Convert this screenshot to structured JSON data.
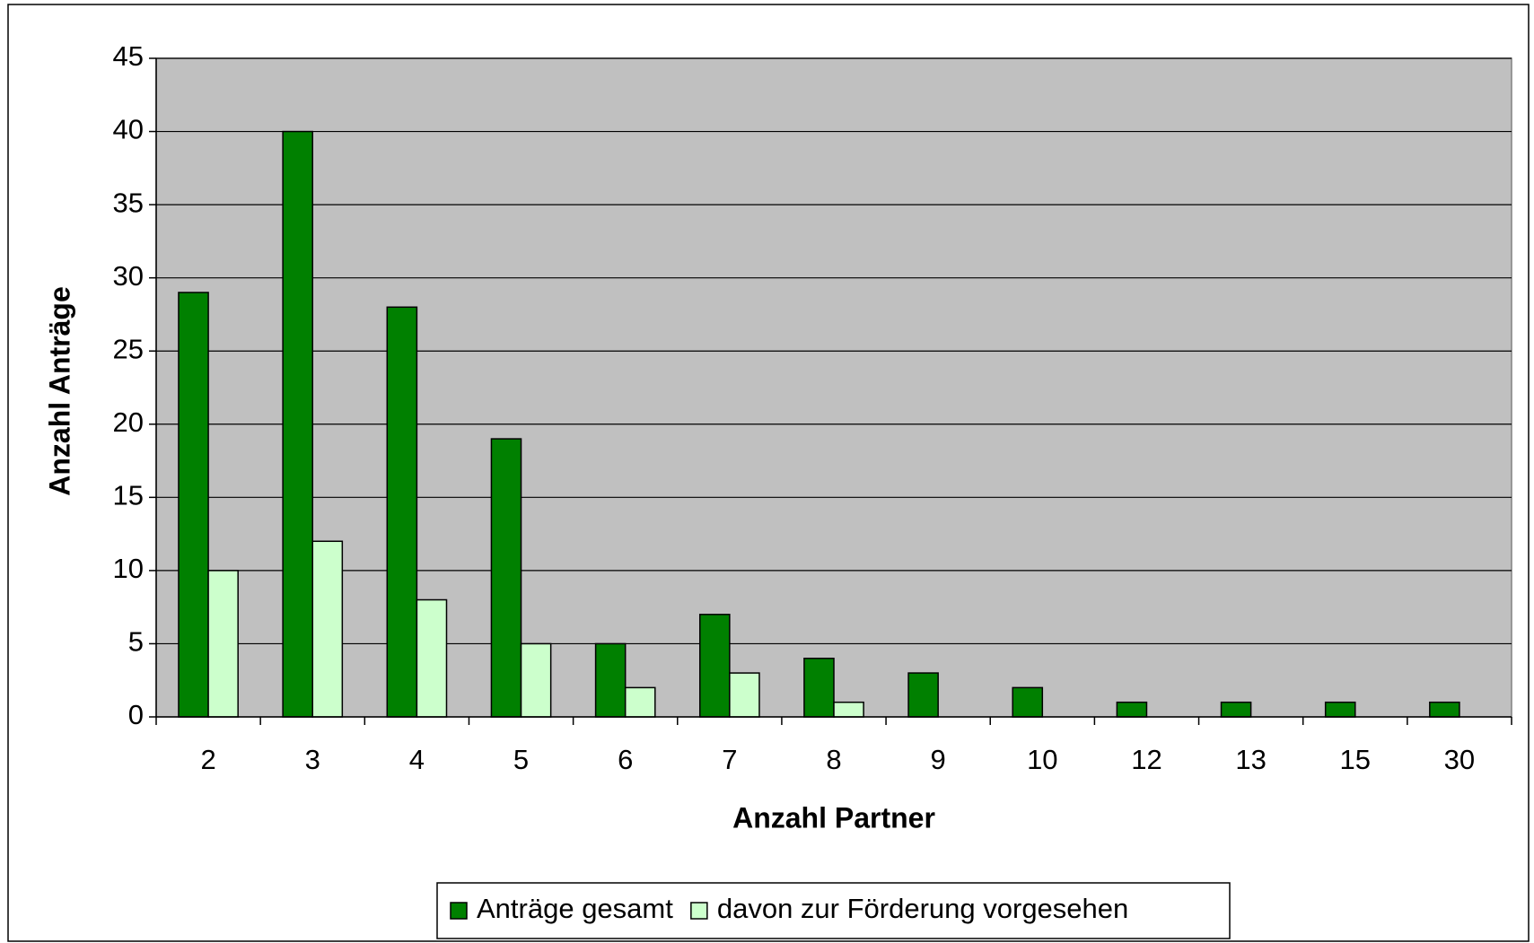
{
  "chart_data": {
    "type": "bar",
    "xlabel": "Anzahl Partner",
    "ylabel": "Anzahl Anträge",
    "categories": [
      "2",
      "3",
      "4",
      "5",
      "6",
      "7",
      "8",
      "9",
      "10",
      "12",
      "13",
      "15",
      "30"
    ],
    "series": [
      {
        "name": "Anträge gesamt",
        "color": "#008000",
        "values": [
          29,
          40,
          28,
          19,
          5,
          7,
          4,
          3,
          2,
          1,
          1,
          1,
          1
        ]
      },
      {
        "name": "davon zur Förderung vorgesehen",
        "color": "#ccffcc",
        "values": [
          10,
          12,
          8,
          5,
          2,
          3,
          1,
          0,
          0,
          0,
          0,
          0,
          0
        ]
      }
    ],
    "ylim": [
      0,
      45
    ],
    "yticks": [
      0,
      5,
      10,
      15,
      20,
      25,
      30,
      35,
      40,
      45
    ],
    "grid": true,
    "legend": "bottom",
    "background": "#c0c0c0"
  }
}
